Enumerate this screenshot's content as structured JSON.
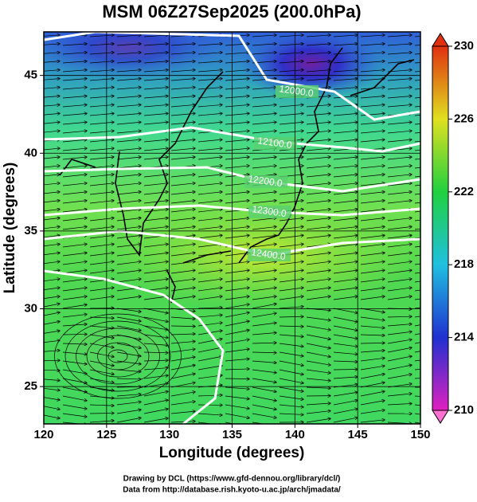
{
  "chart_data": {
    "type": "contour",
    "title": "MSM 06Z27Sep2025 (200.0hPa)",
    "xlabel": "Longitude (degrees)",
    "ylabel": "Latitude  (degrees)",
    "xlim": [
      120,
      150
    ],
    "xticks": [
      120,
      125,
      130,
      135,
      140,
      145,
      150
    ],
    "ylim": [
      22.6,
      47.8
    ],
    "yticks": [
      25,
      30,
      35,
      40,
      45
    ],
    "grid": true,
    "colorbar": {
      "lim": [
        210,
        230
      ],
      "ticks": [
        210,
        214,
        218,
        222,
        226,
        230
      ],
      "colors": [
        "#e020c0",
        "#2030d0",
        "#20c0e0",
        "#20d040",
        "#e0e020",
        "#e03010"
      ]
    },
    "contours": [
      {
        "value": 12000,
        "label": "12000.0"
      },
      {
        "value": 12100,
        "label": "12100.0"
      },
      {
        "value": 12200,
        "label": "12200.0"
      },
      {
        "value": 12300,
        "label": "12300.0"
      },
      {
        "value": 12400,
        "label": "12400.0"
      }
    ],
    "footer": [
      "Drawing by DCL (https://www.gfd-dennou.org/library/dcl/)",
      "Data from http://database.rish.kyoto-u.ac.jp/arch/jmadata/"
    ]
  }
}
